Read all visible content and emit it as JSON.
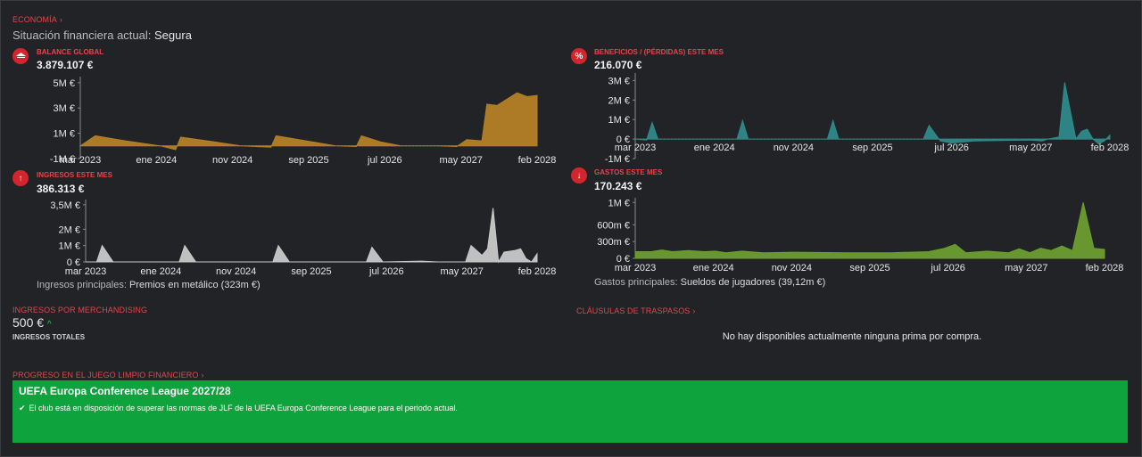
{
  "header": {
    "section_link": "ECONOMÍA",
    "status_prefix": "Situación financiera actual:",
    "status_value": "Segura"
  },
  "x_labels": [
    "mar 2023",
    "ene 2024",
    "nov 2024",
    "sep 2025",
    "jul 2026",
    "may 2027",
    "feb 2028"
  ],
  "panels": {
    "balance": {
      "label": "BALANCE GLOBAL",
      "value": "3.879.107 €",
      "icon": "bank-icon"
    },
    "profit": {
      "label": "BENEFICIOS / (PÉRDIDAS) ESTE MES",
      "value": "216.070 €",
      "icon": "percent-icon"
    },
    "income": {
      "label": "INGRESOS ESTE MES",
      "value": "386.313 €",
      "icon": "arrow-up-icon",
      "summary_label": "Ingresos principales:",
      "summary_value": "Premios en metálico (323m €)"
    },
    "expenses": {
      "label": "GASTOS ESTE MES",
      "value": "170.243 €",
      "icon": "arrow-down-icon",
      "summary_label": "Gastos principales:",
      "summary_value": "Sueldos de jugadores (39,12m €)"
    }
  },
  "merch": {
    "link": "INGRESOS POR MERCHANDISING",
    "value": "500 €",
    "sublabel": "INGRESOS TOTALES"
  },
  "transfers": {
    "link": "CLÁUSULAS DE TRASPASOS",
    "message": "No hay disponibles actualmente ninguna prima por compra."
  },
  "ffp": {
    "link": "PROGRESO EN EL JUEGO LIMPIO FINANCIERO",
    "title": "UEFA Europa Conference League 2027/28",
    "message": "El club está en disposición de superar las normas de JLF de la UEFA Europa Conference League para el periodo actual."
  },
  "colors": {
    "accent": "#e0474c",
    "balance": "#b57f25",
    "profit": "#2f8a8a",
    "income": "#c9c9c9",
    "expenses": "#6b9e2e",
    "ffp_bg": "#0ea33c"
  },
  "chart_data": [
    {
      "type": "area",
      "name_ref": "balance",
      "title": "BALANCE GLOBAL",
      "x_labels": [
        "mar 2023",
        "ene 2024",
        "nov 2024",
        "sep 2025",
        "jul 2026",
        "may 2027",
        "feb 2028"
      ],
      "yticks": [
        "5M €",
        "3M €",
        "1M €",
        "-1M €"
      ],
      "ytick_values": [
        5,
        3,
        1,
        -1
      ],
      "ylim": [
        -1,
        5.2
      ],
      "unit": "M €",
      "points": [
        [
          0,
          0
        ],
        [
          3,
          0.8
        ],
        [
          9,
          0.4
        ],
        [
          16,
          0
        ],
        [
          19,
          -0.3
        ],
        [
          20,
          0.7
        ],
        [
          27,
          0.3
        ],
        [
          32,
          0
        ],
        [
          38,
          -0.1
        ],
        [
          39,
          0.8
        ],
        [
          45,
          0.4
        ],
        [
          51,
          0
        ],
        [
          55,
          -0.05
        ],
        [
          56,
          0.8
        ],
        [
          60,
          0.3
        ],
        [
          64,
          0
        ],
        [
          71,
          0
        ],
        [
          75,
          -0.05
        ],
        [
          77,
          0.5
        ],
        [
          80,
          0.4
        ],
        [
          81,
          3.3
        ],
        [
          83,
          3.2
        ],
        [
          87,
          4.2
        ],
        [
          89,
          3.9
        ],
        [
          91,
          4.0
        ]
      ]
    },
    {
      "type": "area",
      "name_ref": "profit",
      "title": "BENEFICIOS / (PÉRDIDAS) ESTE MES",
      "x_labels": [
        "mar 2023",
        "ene 2024",
        "nov 2024",
        "sep 2025",
        "jul 2026",
        "may 2027",
        "feb 2028"
      ],
      "yticks": [
        "3M €",
        "2M €",
        "1M €",
        "0 €",
        "-1M €"
      ],
      "ytick_values": [
        3,
        2,
        1,
        0,
        -1
      ],
      "ylim": [
        -1,
        3.2
      ],
      "unit": "M €",
      "points": [
        [
          0,
          0
        ],
        [
          2,
          -0.05
        ],
        [
          3,
          0.85
        ],
        [
          4,
          0
        ],
        [
          18,
          0
        ],
        [
          19,
          0.95
        ],
        [
          20,
          0
        ],
        [
          34,
          0
        ],
        [
          35,
          0.95
        ],
        [
          36,
          0
        ],
        [
          51,
          0
        ],
        [
          52,
          0.7
        ],
        [
          54,
          -0.1
        ],
        [
          56,
          -0.2
        ],
        [
          60,
          -0.1
        ],
        [
          70,
          -0.05
        ],
        [
          72,
          -0.1
        ],
        [
          73,
          0
        ],
        [
          75,
          0.1
        ],
        [
          76,
          2.9
        ],
        [
          78,
          0
        ],
        [
          79,
          0.4
        ],
        [
          80,
          0.5
        ],
        [
          81,
          0
        ],
        [
          82,
          -0.25
        ],
        [
          83,
          -0.1
        ],
        [
          84,
          0.2
        ]
      ]
    },
    {
      "type": "area",
      "name_ref": "income",
      "title": "INGRESOS ESTE MES",
      "x_labels": [
        "mar 2023",
        "ene 2024",
        "nov 2024",
        "sep 2025",
        "jul 2026",
        "may 2027",
        "feb 2028"
      ],
      "yticks": [
        "3,5M €",
        "2M €",
        "1M €",
        "0 €"
      ],
      "ytick_values": [
        3.5,
        2,
        1,
        0
      ],
      "ylim": [
        0,
        3.6
      ],
      "unit": "M €",
      "points": [
        [
          0,
          0
        ],
        [
          2,
          0
        ],
        [
          3,
          1.0
        ],
        [
          5,
          0
        ],
        [
          17,
          0
        ],
        [
          18,
          1.0
        ],
        [
          20,
          0
        ],
        [
          34,
          0
        ],
        [
          35,
          1.0
        ],
        [
          37,
          0
        ],
        [
          51,
          0
        ],
        [
          52,
          0.9
        ],
        [
          54,
          0
        ],
        [
          61,
          0.05
        ],
        [
          64,
          0
        ],
        [
          69,
          0
        ],
        [
          70,
          1.0
        ],
        [
          72,
          0.4
        ],
        [
          73,
          0.8
        ],
        [
          74,
          3.3
        ],
        [
          75,
          0
        ],
        [
          76,
          0.6
        ],
        [
          78,
          0.7
        ],
        [
          79,
          0.8
        ],
        [
          80,
          0.2
        ],
        [
          81,
          0
        ],
        [
          82,
          0.5
        ]
      ]
    },
    {
      "type": "area",
      "name_ref": "expenses",
      "title": "GASTOS ESTE MES",
      "x_labels": [
        "mar 2023",
        "ene 2024",
        "nov 2024",
        "sep 2025",
        "jul 2026",
        "may 2027",
        "feb 2028"
      ],
      "yticks": [
        "1M €",
        "600m €",
        "300m €",
        "0 €"
      ],
      "ytick_values": [
        1,
        0.6,
        0.3,
        0
      ],
      "ylim": [
        0,
        1.02
      ],
      "unit": "M €",
      "points": [
        [
          0,
          0.12
        ],
        [
          3,
          0.12
        ],
        [
          5,
          0.15
        ],
        [
          7,
          0.12
        ],
        [
          10,
          0.14
        ],
        [
          13,
          0.12
        ],
        [
          15,
          0.13
        ],
        [
          17,
          0.1
        ],
        [
          20,
          0.13
        ],
        [
          24,
          0.1
        ],
        [
          30,
          0.11
        ],
        [
          40,
          0.1
        ],
        [
          48,
          0.1
        ],
        [
          55,
          0.12
        ],
        [
          58,
          0.18
        ],
        [
          60,
          0.25
        ],
        [
          62,
          0.1
        ],
        [
          66,
          0.13
        ],
        [
          70,
          0.1
        ],
        [
          72,
          0.17
        ],
        [
          74,
          0.1
        ],
        [
          76,
          0.18
        ],
        [
          78,
          0.14
        ],
        [
          80,
          0.22
        ],
        [
          82,
          0.14
        ],
        [
          84,
          1.0
        ],
        [
          86,
          0.18
        ],
        [
          88,
          0.16
        ]
      ]
    }
  ]
}
